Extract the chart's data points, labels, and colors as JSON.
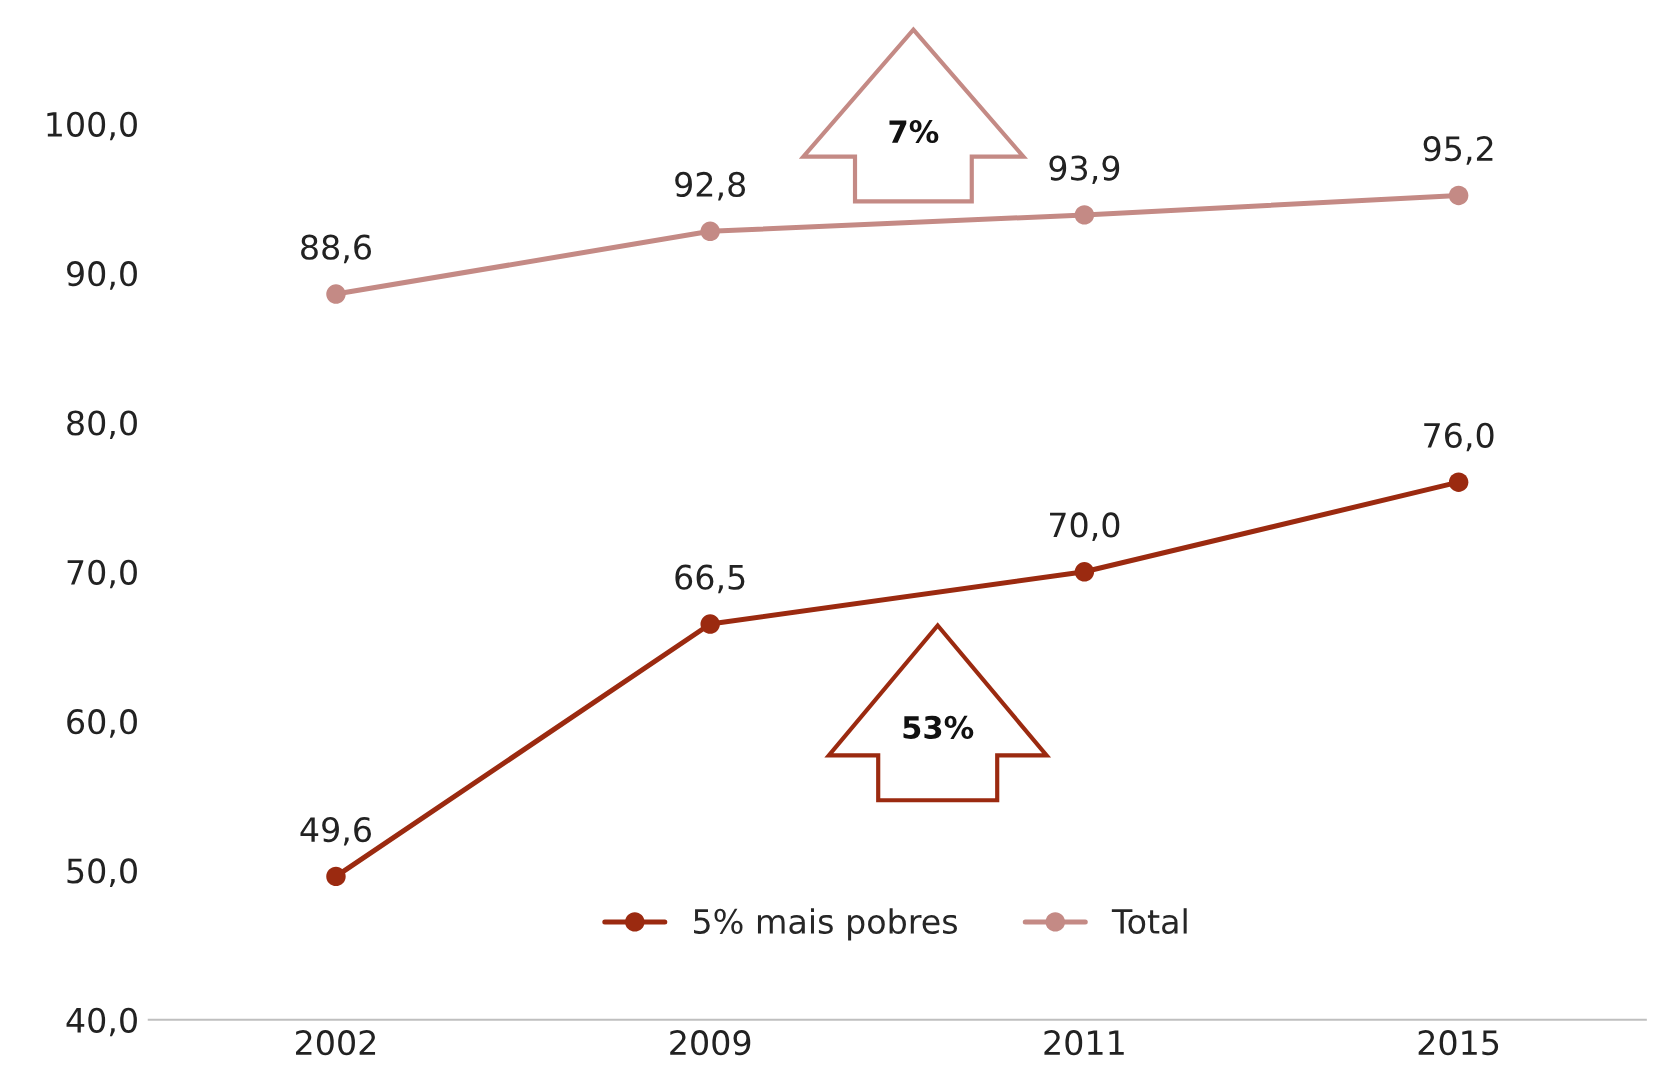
{
  "chart_data": {
    "type": "line",
    "categories": [
      "2002",
      "2009",
      "2011",
      "2015"
    ],
    "series": [
      {
        "name": "5% mais pobres",
        "color": "#9b2a10",
        "values": [
          49.6,
          66.5,
          70.0,
          76.0
        ]
      },
      {
        "name": "Total",
        "color": "#c48a85",
        "values": [
          88.6,
          92.8,
          93.9,
          95.2
        ]
      }
    ],
    "ylim": [
      40,
      100
    ],
    "yticks": [
      {
        "value": 40,
        "label": "40,0"
      },
      {
        "value": 50,
        "label": "50,0"
      },
      {
        "value": 60,
        "label": "60,0"
      },
      {
        "value": 70,
        "label": "70,0"
      },
      {
        "value": 80,
        "label": "80,0"
      },
      {
        "value": 90,
        "label": "90,0"
      },
      {
        "value": 100,
        "label": "100,0"
      }
    ],
    "value_labels": [
      [
        "49,6",
        "66,5",
        "70,0",
        "76,0"
      ],
      [
        "88,6",
        "92,8",
        "93,9",
        "95,2"
      ]
    ],
    "annotations": [
      "7%",
      "53%"
    ],
    "marker": "circle",
    "line_style": "solid",
    "grid": false,
    "legend": "bottom"
  }
}
